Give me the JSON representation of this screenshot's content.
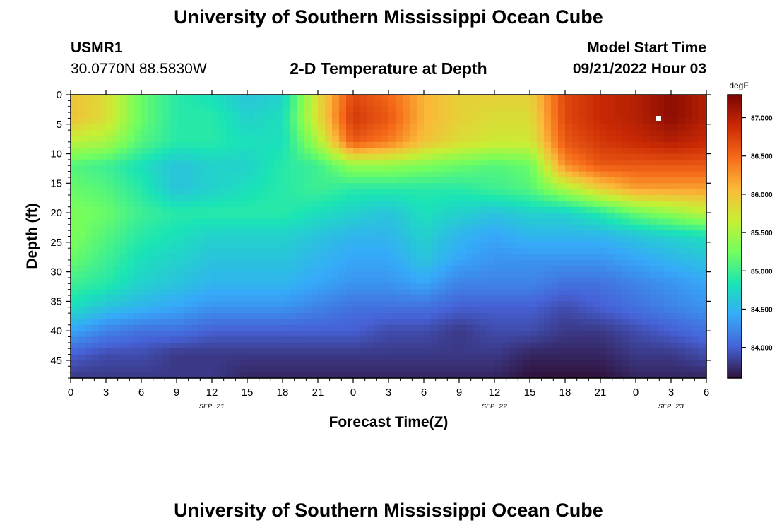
{
  "header": {
    "title": "University of Southern Mississippi Ocean Cube",
    "station_id": "USMR1",
    "station_coords": "30.0770N  88.5830W",
    "chart_title": "2-D Temperature at Depth",
    "model_start_label": "Model Start Time",
    "model_start_value": "09/21/2022 Hour 03"
  },
  "footer": {
    "title": "University of Southern Mississippi Ocean Cube"
  },
  "chart_data": {
    "type": "heatmap",
    "title": "2-D Temperature at Depth",
    "xlabel": "Forecast Time(Z)",
    "ylabel": "Depth (ft)",
    "colorbar_unit": "degF",
    "x_ticks": [
      "0",
      "3",
      "6",
      "9",
      "12",
      "15",
      "18",
      "21",
      "0",
      "3",
      "6",
      "9",
      "12",
      "15",
      "18",
      "21",
      "0",
      "3",
      "6"
    ],
    "x_hours": [
      0,
      3,
      6,
      9,
      12,
      15,
      18,
      21,
      24,
      27,
      30,
      33,
      36,
      39,
      42,
      45,
      48,
      51,
      54
    ],
    "date_labels": [
      {
        "label": "SEP 21",
        "hour": 12
      },
      {
        "label": "SEP 22",
        "hour": 36
      },
      {
        "label": "SEP 23",
        "hour": 51
      }
    ],
    "xlim": [
      0,
      54
    ],
    "y_ticks": [
      0,
      5,
      10,
      15,
      20,
      25,
      30,
      35,
      40,
      45
    ],
    "ylim": [
      0,
      48
    ],
    "y_inverted": true,
    "colorbar_ticks": [
      "84.000",
      "84.500",
      "85.000",
      "85.500",
      "86.000",
      "86.500",
      "87.000"
    ],
    "colorbar_values": [
      84.0,
      84.5,
      85.0,
      85.5,
      86.0,
      86.5,
      87.0
    ],
    "vmin": 83.6,
    "vmax": 87.3,
    "colormap": [
      "#30123b",
      "#4662d7",
      "#36aaf9",
      "#1ae4b6",
      "#72fe5e",
      "#c8ef34",
      "#faba39",
      "#f66b19",
      "#ca2a04",
      "#7a0403"
    ],
    "grid_x_hours": [
      0,
      3,
      6,
      9,
      12,
      15,
      18,
      21,
      24,
      27,
      30,
      33,
      36,
      39,
      42,
      45,
      48,
      51,
      54
    ],
    "grid_depths_ft": [
      0,
      4,
      8,
      12,
      16,
      20,
      24,
      28,
      32,
      36,
      40,
      44,
      48
    ],
    "temperature_degF": [
      [
        86.0,
        85.8,
        85.2,
        84.9,
        84.8,
        84.6,
        84.7,
        85.8,
        86.7,
        86.5,
        86.1,
        85.9,
        85.9,
        85.9,
        86.7,
        86.9,
        87.0,
        87.2,
        87.0
      ],
      [
        86.0,
        85.8,
        85.2,
        84.9,
        84.9,
        84.7,
        84.8,
        85.8,
        86.8,
        86.6,
        86.1,
        85.9,
        85.8,
        85.8,
        86.7,
        86.9,
        87.0,
        87.2,
        87.0
      ],
      [
        85.6,
        85.5,
        85.1,
        84.9,
        84.9,
        84.8,
        84.8,
        85.5,
        86.6,
        86.4,
        86.0,
        85.8,
        85.7,
        85.7,
        86.6,
        86.8,
        86.9,
        87.0,
        86.9
      ],
      [
        85.1,
        85.0,
        84.8,
        84.6,
        84.7,
        84.7,
        84.9,
        85.0,
        85.4,
        85.4,
        85.3,
        85.2,
        85.1,
        85.2,
        86.3,
        86.6,
        86.6,
        86.6,
        86.6
      ],
      [
        85.2,
        85.1,
        84.9,
        84.6,
        84.7,
        84.8,
        84.9,
        85.0,
        84.9,
        84.9,
        84.9,
        84.9,
        85.0,
        85.1,
        85.5,
        85.9,
        86.2,
        86.2,
        86.2
      ],
      [
        85.3,
        85.2,
        85.0,
        84.9,
        84.9,
        84.9,
        84.9,
        84.8,
        84.7,
        84.6,
        84.8,
        84.7,
        84.6,
        84.7,
        84.7,
        84.9,
        85.2,
        85.4,
        85.6
      ],
      [
        85.3,
        85.1,
        84.9,
        84.8,
        84.7,
        84.7,
        84.7,
        84.6,
        84.5,
        84.5,
        84.7,
        84.5,
        84.4,
        84.5,
        84.5,
        84.5,
        84.6,
        84.7,
        84.8
      ],
      [
        85.2,
        85.0,
        84.8,
        84.7,
        84.6,
        84.6,
        84.6,
        84.5,
        84.4,
        84.4,
        84.6,
        84.4,
        84.3,
        84.3,
        84.3,
        84.3,
        84.4,
        84.5,
        84.6
      ],
      [
        85.0,
        84.9,
        84.7,
        84.6,
        84.5,
        84.5,
        84.5,
        84.4,
        84.3,
        84.3,
        84.4,
        84.2,
        84.2,
        84.2,
        84.1,
        84.1,
        84.2,
        84.3,
        84.4
      ],
      [
        84.8,
        84.6,
        84.5,
        84.4,
        84.3,
        84.3,
        84.3,
        84.2,
        84.1,
        84.1,
        84.1,
        84.0,
        84.0,
        84.0,
        83.9,
        84.0,
        84.1,
        84.2,
        84.3
      ],
      [
        84.4,
        84.2,
        84.1,
        84.1,
        84.0,
        84.0,
        84.0,
        84.0,
        84.0,
        83.9,
        83.9,
        83.8,
        83.9,
        83.9,
        83.8,
        83.8,
        83.9,
        84.0,
        84.1
      ],
      [
        84.0,
        83.9,
        83.9,
        83.8,
        83.8,
        83.8,
        83.8,
        83.8,
        83.8,
        83.8,
        83.8,
        83.8,
        83.8,
        83.7,
        83.7,
        83.7,
        83.8,
        83.8,
        83.9
      ],
      [
        83.8,
        83.8,
        83.8,
        83.8,
        83.8,
        83.7,
        83.7,
        83.7,
        83.7,
        83.7,
        83.7,
        83.7,
        83.7,
        83.6,
        83.6,
        83.6,
        83.7,
        83.7,
        83.7
      ]
    ]
  }
}
